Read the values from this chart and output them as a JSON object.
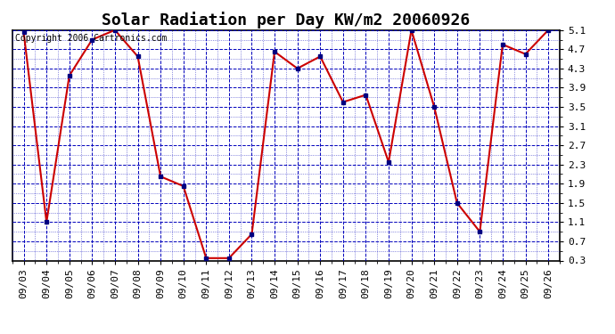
{
  "title": "Solar Radiation per Day KW/m2 20060926",
  "copyright": "Copyright 2006 Cartronics.com",
  "dates": [
    "09/03",
    "09/04",
    "09/05",
    "09/06",
    "09/07",
    "09/08",
    "09/09",
    "09/10",
    "09/11",
    "09/12",
    "09/13",
    "09/14",
    "09/15",
    "09/16",
    "09/17",
    "09/18",
    "09/19",
    "09/20",
    "09/21",
    "09/22",
    "09/23",
    "09/24",
    "09/25",
    "09/26"
  ],
  "values": [
    5.05,
    1.1,
    4.15,
    4.9,
    5.1,
    4.55,
    2.05,
    1.85,
    0.35,
    0.35,
    0.85,
    4.65,
    4.3,
    4.55,
    3.6,
    3.75,
    2.35,
    5.1,
    3.5,
    1.5,
    0.9,
    4.8,
    4.6,
    5.1
  ],
  "ylim": [
    0.3,
    5.1
  ],
  "yticks": [
    0.3,
    0.7,
    1.1,
    1.5,
    1.9,
    2.3,
    2.7,
    3.1,
    3.5,
    3.9,
    4.3,
    4.7,
    5.1
  ],
  "line_color": "#cc0000",
  "marker_color": "#000080",
  "grid_color_major": "#0000bb",
  "grid_color_minor": "#0000bb",
  "bg_color": "#ffffff",
  "title_fontsize": 13,
  "copyright_fontsize": 7,
  "tick_fontsize": 8,
  "figwidth": 6.9,
  "figheight": 3.75,
  "dpi": 100
}
